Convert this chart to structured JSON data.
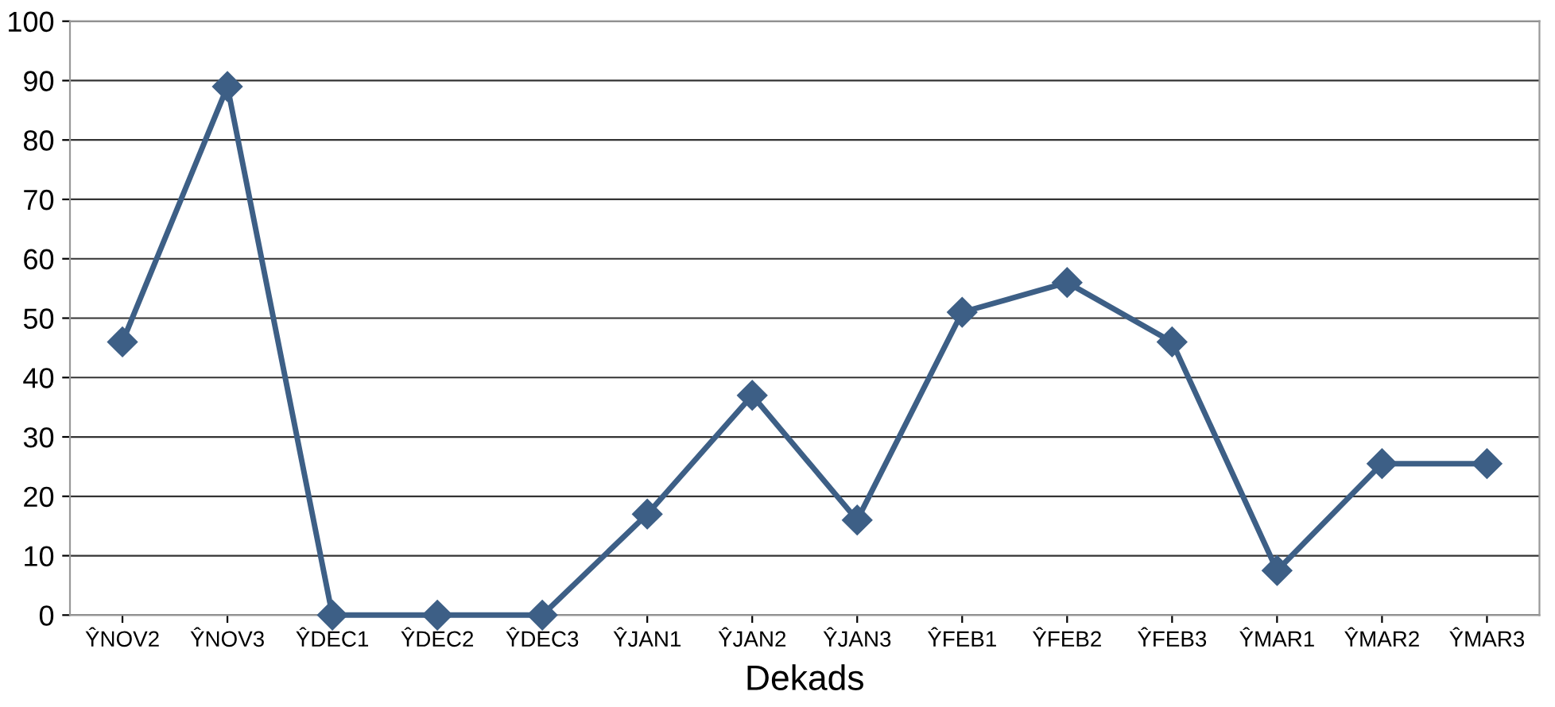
{
  "chart_data": {
    "type": "line",
    "xlabel": "Dekads",
    "categories": [
      "ŶNOV2",
      "ŶNOV3",
      "ŶDEC1",
      "ŶDEC2",
      "ŶDEC3",
      "ŶJAN1",
      "ŶJAN2",
      "ŶJAN3",
      "ŶFEB1",
      "ŶFEB2",
      "ŶFEB3",
      "ŶMAR1",
      "ŶMAR2",
      "ŶMAR3"
    ],
    "series": [
      {
        "color": "#3d5f86",
        "values": [
          46,
          89,
          0,
          0,
          0,
          17,
          37,
          16,
          51,
          56,
          46,
          7.5,
          25.5,
          25.5
        ]
      }
    ],
    "ylim": [
      0,
      100
    ],
    "yticks": [
      0,
      10,
      20,
      30,
      40,
      50,
      60,
      70,
      80,
      90,
      100
    ],
    "grid": "y",
    "marker": "diamond",
    "line_style": "solid"
  }
}
